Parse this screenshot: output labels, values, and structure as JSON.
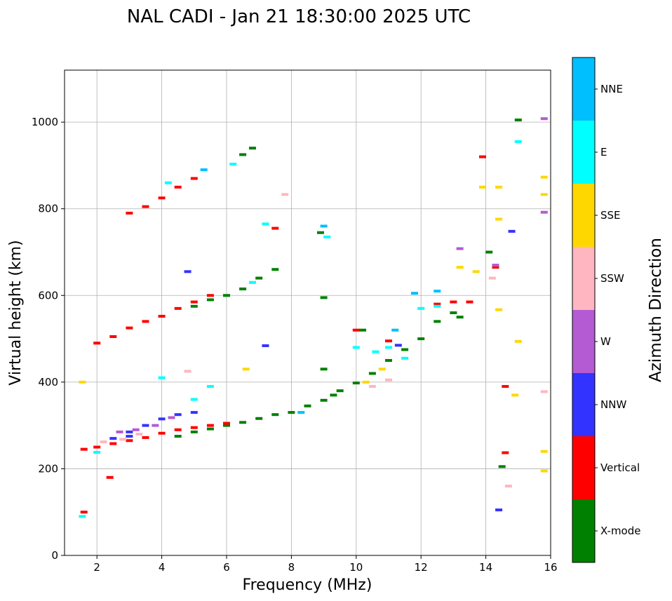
{
  "chart_data": {
    "type": "scatter",
    "title": "NAL CADI - Jan 21 18:30:00 2025 UTC",
    "xlabel": "Frequency (MHz)",
    "ylabel": "Virtual height (km)",
    "xlim": [
      1,
      16
    ],
    "ylim": [
      0,
      1120
    ],
    "xticks": [
      2,
      4,
      6,
      8,
      10,
      12,
      14,
      16
    ],
    "yticks": [
      0,
      200,
      400,
      600,
      800,
      1000
    ],
    "grid": true,
    "colorbar": {
      "title": "Azimuth Direction",
      "categories": [
        {
          "name": "X-mode",
          "color": "#008000"
        },
        {
          "name": "Vertical",
          "color": "#ff0000"
        },
        {
          "name": "NNW",
          "color": "#3333ff"
        },
        {
          "name": "W",
          "color": "#b45ad2"
        },
        {
          "name": "SSW",
          "color": "#ffb6c1"
        },
        {
          "name": "SSE",
          "color": "#ffd700"
        },
        {
          "name": "E",
          "color": "#00ffff"
        },
        {
          "name": "NNE",
          "color": "#00bfff"
        }
      ]
    },
    "series": [
      {
        "name": "X-mode",
        "points": [
          [
            4.5,
            275
          ],
          [
            5.0,
            285
          ],
          [
            5.5,
            292
          ],
          [
            6.0,
            300
          ],
          [
            6.5,
            307
          ],
          [
            7.0,
            316
          ],
          [
            7.5,
            325
          ],
          [
            8.0,
            330
          ],
          [
            8.5,
            345
          ],
          [
            9.0,
            358
          ],
          [
            9.3,
            370
          ],
          [
            9.5,
            380
          ],
          [
            10.0,
            398
          ],
          [
            10.5,
            420
          ],
          [
            11.0,
            450
          ],
          [
            11.5,
            475
          ],
          [
            12.0,
            500
          ],
          [
            12.5,
            540
          ],
          [
            13.0,
            560
          ],
          [
            5.0,
            575
          ],
          [
            5.5,
            590
          ],
          [
            6.0,
            600
          ],
          [
            6.5,
            615
          ],
          [
            7.0,
            640
          ],
          [
            7.5,
            660
          ],
          [
            6.5,
            925
          ],
          [
            6.8,
            940
          ],
          [
            13.2,
            550
          ],
          [
            14.1,
            700
          ],
          [
            15.0,
            1005
          ],
          [
            14.5,
            205
          ],
          [
            9.0,
            430
          ],
          [
            8.9,
            745
          ],
          [
            9.0,
            595
          ],
          [
            10.2,
            520
          ]
        ]
      },
      {
        "name": "Vertical",
        "points": [
          [
            1.6,
            245
          ],
          [
            2.0,
            250
          ],
          [
            2.5,
            258
          ],
          [
            3.0,
            265
          ],
          [
            3.5,
            272
          ],
          [
            4.0,
            282
          ],
          [
            4.5,
            290
          ],
          [
            5.0,
            295
          ],
          [
            5.5,
            300
          ],
          [
            6.0,
            305
          ],
          [
            2.0,
            490
          ],
          [
            2.5,
            505
          ],
          [
            3.0,
            525
          ],
          [
            3.5,
            540
          ],
          [
            4.0,
            552
          ],
          [
            4.5,
            570
          ],
          [
            5.0,
            585
          ],
          [
            5.5,
            600
          ],
          [
            3.0,
            790
          ],
          [
            3.5,
            805
          ],
          [
            4.0,
            825
          ],
          [
            4.5,
            850
          ],
          [
            5.0,
            870
          ],
          [
            12.5,
            580
          ],
          [
            13.0,
            585
          ],
          [
            13.5,
            585
          ],
          [
            13.9,
            920
          ],
          [
            14.3,
            665
          ],
          [
            14.6,
            390
          ],
          [
            14.6,
            237
          ],
          [
            2.4,
            180
          ],
          [
            7.5,
            755
          ],
          [
            1.6,
            100
          ],
          [
            10.0,
            520
          ],
          [
            11.0,
            495
          ]
        ]
      },
      {
        "name": "NNW",
        "points": [
          [
            2.5,
            270
          ],
          [
            3.0,
            285
          ],
          [
            3.5,
            300
          ],
          [
            4.0,
            315
          ],
          [
            4.5,
            325
          ],
          [
            5.0,
            330
          ],
          [
            3.0,
            275
          ],
          [
            4.8,
            655
          ],
          [
            14.4,
            105
          ],
          [
            14.8,
            748
          ],
          [
            11.3,
            485
          ],
          [
            7.2,
            484
          ]
        ]
      },
      {
        "name": "W",
        "points": [
          [
            2.7,
            285
          ],
          [
            3.2,
            290
          ],
          [
            3.8,
            300
          ],
          [
            4.3,
            318
          ],
          [
            13.2,
            708
          ],
          [
            15.8,
            792
          ],
          [
            15.8,
            1008
          ],
          [
            14.3,
            670
          ]
        ]
      },
      {
        "name": "SSW",
        "points": [
          [
            2.2,
            262
          ],
          [
            2.8,
            268
          ],
          [
            3.3,
            280
          ],
          [
            10.5,
            390
          ],
          [
            11.0,
            405
          ],
          [
            14.2,
            640
          ],
          [
            14.7,
            160
          ],
          [
            15.8,
            378
          ],
          [
            7.8,
            833
          ],
          [
            4.8,
            425
          ]
        ]
      },
      {
        "name": "SSE",
        "points": [
          [
            10.3,
            400
          ],
          [
            10.8,
            430
          ],
          [
            13.2,
            665
          ],
          [
            13.9,
            850
          ],
          [
            14.4,
            850
          ],
          [
            14.4,
            776
          ],
          [
            14.4,
            567
          ],
          [
            15.0,
            494
          ],
          [
            14.9,
            370
          ],
          [
            15.8,
            240
          ],
          [
            15.8,
            195
          ],
          [
            15.8,
            833
          ],
          [
            15.8,
            873
          ],
          [
            6.6,
            430
          ],
          [
            1.55,
            400
          ],
          [
            13.7,
            655
          ]
        ]
      },
      {
        "name": "E",
        "points": [
          [
            4.0,
            410
          ],
          [
            5.0,
            360
          ],
          [
            5.5,
            390
          ],
          [
            6.2,
            903
          ],
          [
            6.8,
            630
          ],
          [
            7.2,
            765
          ],
          [
            9.1,
            735
          ],
          [
            10.0,
            480
          ],
          [
            10.6,
            470
          ],
          [
            11.0,
            480
          ],
          [
            11.5,
            455
          ],
          [
            12.0,
            570
          ],
          [
            12.5,
            575
          ],
          [
            15.0,
            955
          ],
          [
            1.55,
            90
          ],
          [
            4.2,
            860
          ],
          [
            2.0,
            238
          ]
        ]
      },
      {
        "name": "NNE",
        "points": [
          [
            8.3,
            330
          ],
          [
            9.0,
            760
          ],
          [
            11.2,
            520
          ],
          [
            11.8,
            605
          ],
          [
            12.5,
            610
          ],
          [
            5.3,
            890
          ]
        ]
      }
    ]
  }
}
